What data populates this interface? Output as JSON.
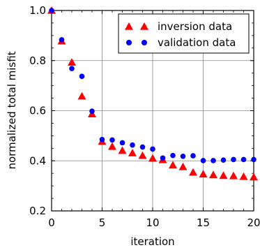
{
  "chart_data": {
    "type": "scatter",
    "xlabel": "iteration",
    "ylabel": "normalized total misfit",
    "xlim": [
      0,
      20
    ],
    "ylim": [
      0.2,
      1.0
    ],
    "xticks": [
      "0",
      "5",
      "10",
      "15",
      "20"
    ],
    "yticks": [
      "0.2",
      "0.4",
      "0.6",
      "0.8",
      "1.0"
    ],
    "grid": true,
    "legend_position": "top-right",
    "series": [
      {
        "name": "inversion data",
        "marker": "triangle",
        "color": "#ff0000",
        "x": [
          0,
          1,
          2,
          3,
          4,
          5,
          6,
          7,
          8,
          9,
          10,
          11,
          12,
          13,
          14,
          15,
          16,
          17,
          18,
          19,
          20
        ],
        "y": [
          1.0,
          0.878,
          0.793,
          0.658,
          0.587,
          0.477,
          0.457,
          0.441,
          0.431,
          0.421,
          0.41,
          0.404,
          0.383,
          0.376,
          0.354,
          0.347,
          0.344,
          0.341,
          0.34,
          0.337,
          0.335
        ]
      },
      {
        "name": "validation data",
        "marker": "circle",
        "color": "#0000ff",
        "x": [
          0,
          1,
          2,
          3,
          4,
          5,
          6,
          7,
          8,
          9,
          10,
          11,
          12,
          13,
          14,
          15,
          16,
          17,
          18,
          19,
          20
        ],
        "y": [
          1.0,
          0.883,
          0.768,
          0.737,
          0.598,
          0.485,
          0.483,
          0.472,
          0.463,
          0.455,
          0.447,
          0.411,
          0.421,
          0.418,
          0.42,
          0.401,
          0.401,
          0.403,
          0.405,
          0.405,
          0.405
        ]
      }
    ]
  }
}
